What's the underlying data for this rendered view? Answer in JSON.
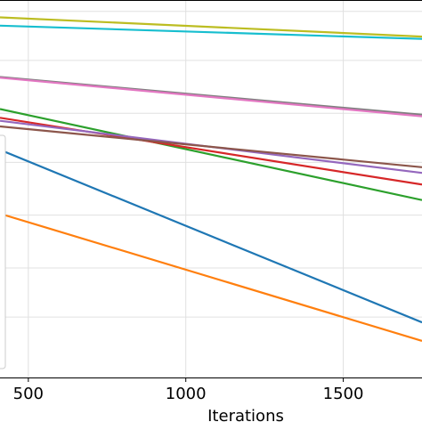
{
  "chart_data": {
    "type": "line",
    "xlabel": "Iterations",
    "ylabel": "",
    "title": "",
    "xlim": [
      410,
      1750
    ],
    "ylim": [
      0,
      1
    ],
    "x_ticks": [
      500,
      1000,
      1500
    ],
    "grid": true,
    "legend": "partially visible at left edge, entries cropped",
    "series": [
      {
        "color": "#bcbd22",
        "x": [
          410,
          1750
        ],
        "y": [
          0.954,
          0.903
        ]
      },
      {
        "color": "#17becf",
        "x": [
          410,
          1750
        ],
        "y": [
          0.932,
          0.897
        ]
      },
      {
        "color": "#7f7f7f",
        "x": [
          410,
          1750
        ],
        "y": [
          0.796,
          0.696
        ]
      },
      {
        "color": "#e377c2",
        "x": [
          410,
          1750
        ],
        "y": [
          0.794,
          0.692
        ]
      },
      {
        "color": "#2ca02c",
        "x": [
          410,
          1750
        ],
        "y": [
          0.711,
          0.47
        ]
      },
      {
        "color": "#d62728",
        "x": [
          410,
          1750
        ],
        "y": [
          0.688,
          0.511
        ]
      },
      {
        "color": "#9467bd",
        "x": [
          410,
          1750
        ],
        "y": [
          0.68,
          0.542
        ]
      },
      {
        "color": "#8c564b",
        "x": [
          410,
          1750
        ],
        "y": [
          0.665,
          0.557
        ]
      },
      {
        "color": "#1f77b4",
        "x": [
          410,
          1750
        ],
        "y": [
          0.603,
          0.146
        ]
      },
      {
        "color": "#ff7f0e",
        "x": [
          410,
          1750
        ],
        "y": [
          0.434,
          0.097
        ]
      }
    ]
  }
}
